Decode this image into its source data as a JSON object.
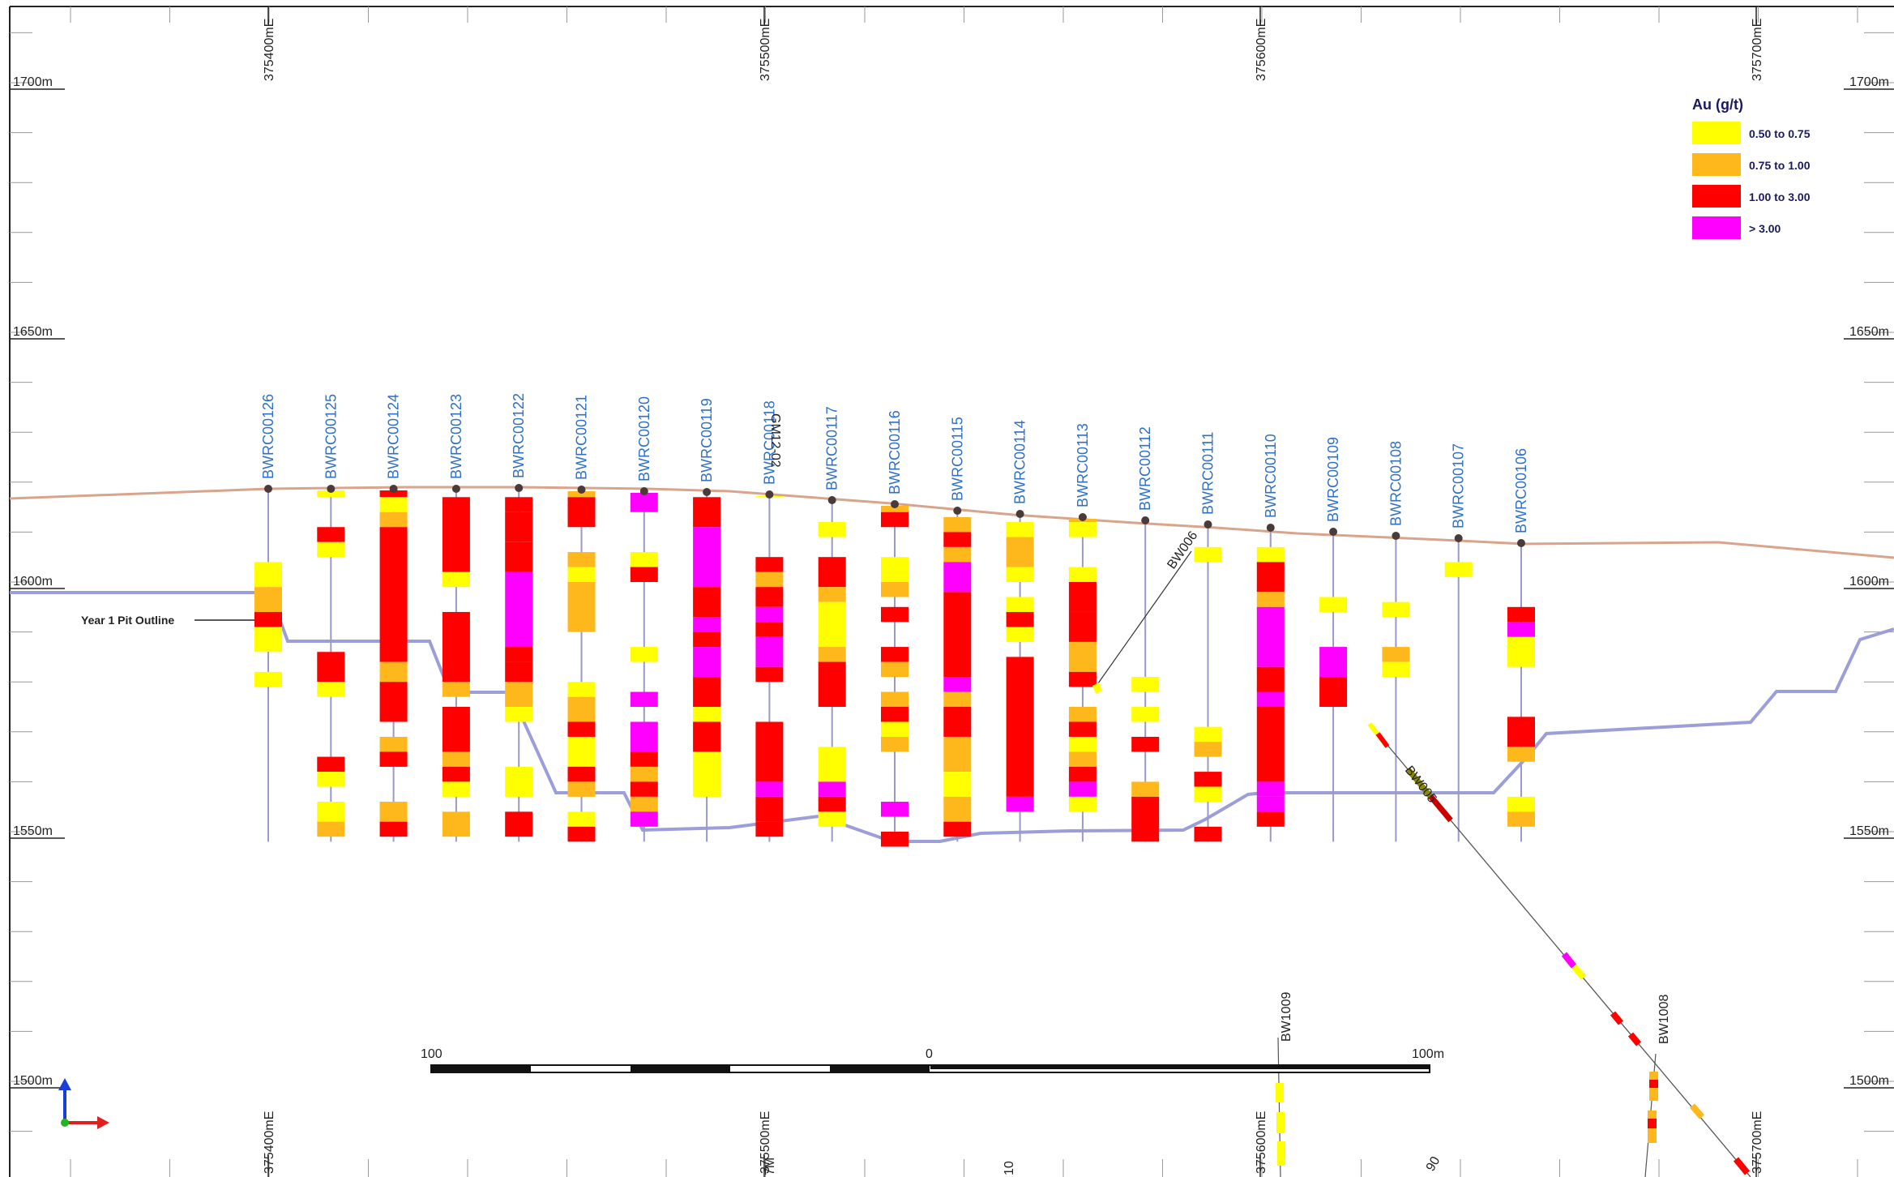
{
  "section": {
    "easting_labels": [
      "375400mE",
      "375500mE",
      "375600mE",
      "375700mE"
    ],
    "elevation_labels": [
      "1700m",
      "1650m",
      "1600m",
      "1550m",
      "1500m"
    ],
    "pit_outline_label": "Year 1 Pit Outline",
    "scale_bar": {
      "left_label": "100",
      "mid_label": "0",
      "right_label": "100m"
    }
  },
  "legend": {
    "title": "Au (g/t)",
    "items": [
      {
        "label": "0.50 to 0.75",
        "color": "#ffff00"
      },
      {
        "label": "0.75 to 1.00",
        "color": "#ffb81c"
      },
      {
        "label": "1.00 to 3.00",
        "color": "#ff0000"
      },
      {
        "label": "> 3.00",
        "color": "#ff00ff"
      }
    ]
  },
  "colors": {
    "topography": "#d9a48c",
    "pit_outline": "#9c9ed8",
    "trace": "#9a9ac8",
    "hole_label": "#2e6fc9"
  },
  "drillholes": [
    {
      "id": "BWRC00126",
      "intervals": [
        [
          1604,
          1599,
          "yellow"
        ],
        [
          1599,
          1594,
          "orange"
        ],
        [
          1594,
          1591,
          "red"
        ],
        [
          1591,
          1586,
          "yellow"
        ],
        [
          1582,
          1579,
          "yellow"
        ]
      ]
    },
    {
      "id": "BWRC00125",
      "intervals": [
        [
          1620,
          1617,
          "yellow"
        ],
        [
          1611,
          1608,
          "red"
        ],
        [
          1608,
          1605,
          "yellow"
        ],
        [
          1586,
          1580,
          "red"
        ],
        [
          1580,
          1577,
          "yellow"
        ],
        [
          1565,
          1562,
          "red"
        ],
        [
          1562,
          1559,
          "yellow"
        ],
        [
          1556,
          1552,
          "yellow"
        ],
        [
          1552,
          1549,
          "orange"
        ]
      ]
    },
    {
      "id": "BWRC00124",
      "intervals": [
        [
          1620,
          1617,
          "red"
        ],
        [
          1617,
          1614,
          "yellow"
        ],
        [
          1614,
          1611,
          "orange"
        ],
        [
          1611,
          1584,
          "red"
        ],
        [
          1584,
          1580,
          "orange"
        ],
        [
          1580,
          1572,
          "red"
        ],
        [
          1569,
          1566,
          "orange"
        ],
        [
          1566,
          1563,
          "red"
        ],
        [
          1556,
          1552,
          "orange"
        ],
        [
          1552,
          1549,
          "red"
        ]
      ]
    },
    {
      "id": "BWRC00123",
      "intervals": [
        [
          1617,
          1602,
          "red"
        ],
        [
          1602,
          1599,
          "yellow"
        ],
        [
          1594,
          1580,
          "red"
        ],
        [
          1580,
          1577,
          "orange"
        ],
        [
          1575,
          1566,
          "red"
        ],
        [
          1566,
          1563,
          "orange"
        ],
        [
          1563,
          1560,
          "red"
        ],
        [
          1560,
          1557,
          "yellow"
        ],
        [
          1554,
          1549,
          "orange"
        ]
      ]
    },
    {
      "id": "BWRC00122",
      "intervals": [
        [
          1617,
          1614,
          "red"
        ],
        [
          1614,
          1608,
          "red"
        ],
        [
          1608,
          1602,
          "red"
        ],
        [
          1602,
          1587,
          "magenta"
        ],
        [
          1587,
          1584,
          "red"
        ],
        [
          1584,
          1580,
          "red"
        ],
        [
          1580,
          1575,
          "orange"
        ],
        [
          1575,
          1572,
          "yellow"
        ],
        [
          1563,
          1557,
          "yellow"
        ],
        [
          1554,
          1549,
          "red"
        ]
      ]
    },
    {
      "id": "BWRC00121",
      "intervals": [
        [
          1620,
          1617,
          "orange"
        ],
        [
          1617,
          1611,
          "red"
        ],
        [
          1606,
          1603,
          "orange"
        ],
        [
          1603,
          1600,
          "yellow"
        ],
        [
          1600,
          1590,
          "orange"
        ],
        [
          1580,
          1577,
          "yellow"
        ],
        [
          1577,
          1572,
          "orange"
        ],
        [
          1572,
          1569,
          "red"
        ],
        [
          1569,
          1563,
          "yellow"
        ],
        [
          1563,
          1560,
          "red"
        ],
        [
          1560,
          1557,
          "orange"
        ],
        [
          1554,
          1551,
          "yellow"
        ],
        [
          1551,
          1548,
          "red"
        ]
      ]
    },
    {
      "id": "BWRC00120",
      "intervals": [
        [
          1620,
          1614,
          "magenta"
        ],
        [
          1606,
          1603,
          "yellow"
        ],
        [
          1603,
          1600,
          "red"
        ],
        [
          1587,
          1584,
          "yellow"
        ],
        [
          1578,
          1575,
          "magenta"
        ],
        [
          1572,
          1566,
          "magenta"
        ],
        [
          1566,
          1563,
          "red"
        ],
        [
          1563,
          1560,
          "orange"
        ],
        [
          1560,
          1557,
          "red"
        ],
        [
          1557,
          1554,
          "orange"
        ],
        [
          1554,
          1551,
          "magenta"
        ]
      ]
    },
    {
      "id": "BWRC00119",
      "intervals": [
        [
          1617,
          1611,
          "red"
        ],
        [
          1611,
          1599,
          "magenta"
        ],
        [
          1599,
          1593,
          "red"
        ],
        [
          1593,
          1590,
          "magenta"
        ],
        [
          1590,
          1587,
          "red"
        ],
        [
          1587,
          1581,
          "magenta"
        ],
        [
          1581,
          1575,
          "red"
        ],
        [
          1575,
          1572,
          "yellow"
        ],
        [
          1572,
          1566,
          "red"
        ],
        [
          1566,
          1557,
          "yellow"
        ]
      ]
    },
    {
      "id": "BWRC00118",
      "intervals": [
        [
          1620,
          1617,
          "yellow"
        ],
        [
          1605,
          1602,
          "red"
        ],
        [
          1602,
          1599,
          "orange"
        ],
        [
          1599,
          1595,
          "red"
        ],
        [
          1595,
          1592,
          "magenta"
        ],
        [
          1592,
          1589,
          "red"
        ],
        [
          1589,
          1583,
          "magenta"
        ],
        [
          1583,
          1580,
          "red"
        ],
        [
          1572,
          1560,
          "red"
        ],
        [
          1560,
          1557,
          "magenta"
        ],
        [
          1557,
          1552,
          "red"
        ],
        [
          1552,
          1549,
          "red"
        ]
      ]
    },
    {
      "id": "BWRC00117",
      "intervals": [
        [
          1612,
          1609,
          "yellow"
        ],
        [
          1605,
          1599,
          "red"
        ],
        [
          1599,
          1596,
          "orange"
        ],
        [
          1596,
          1587,
          "yellow"
        ],
        [
          1587,
          1584,
          "orange"
        ],
        [
          1584,
          1575,
          "red"
        ],
        [
          1567,
          1560,
          "yellow"
        ],
        [
          1560,
          1557,
          "magenta"
        ],
        [
          1557,
          1554,
          "red"
        ],
        [
          1554,
          1551,
          "yellow"
        ]
      ]
    },
    {
      "id": "BWRC00116",
      "intervals": [
        [
          1617,
          1614,
          "orange"
        ],
        [
          1614,
          1611,
          "red"
        ],
        [
          1605,
          1600,
          "yellow"
        ],
        [
          1600,
          1597,
          "orange"
        ],
        [
          1595,
          1592,
          "red"
        ],
        [
          1587,
          1584,
          "red"
        ],
        [
          1584,
          1581,
          "orange"
        ],
        [
          1578,
          1575,
          "orange"
        ],
        [
          1575,
          1572,
          "red"
        ],
        [
          1572,
          1569,
          "yellow"
        ],
        [
          1569,
          1566,
          "orange"
        ],
        [
          1556,
          1553,
          "magenta"
        ],
        [
          1550,
          1547,
          "red"
        ]
      ]
    },
    {
      "id": "BWRC00115",
      "intervals": [
        [
          1613,
          1610,
          "orange"
        ],
        [
          1610,
          1607,
          "red"
        ],
        [
          1607,
          1604,
          "orange"
        ],
        [
          1604,
          1598,
          "magenta"
        ],
        [
          1598,
          1581,
          "red"
        ],
        [
          1581,
          1578,
          "magenta"
        ],
        [
          1578,
          1575,
          "orange"
        ],
        [
          1575,
          1569,
          "red"
        ],
        [
          1569,
          1562,
          "orange"
        ],
        [
          1562,
          1557,
          "yellow"
        ],
        [
          1557,
          1552,
          "orange"
        ],
        [
          1552,
          1549,
          "red"
        ]
      ]
    },
    {
      "id": "BWRC00114",
      "intervals": [
        [
          1612,
          1609,
          "yellow"
        ],
        [
          1609,
          1603,
          "orange"
        ],
        [
          1603,
          1600,
          "yellow"
        ],
        [
          1597,
          1594,
          "yellow"
        ],
        [
          1594,
          1591,
          "red"
        ],
        [
          1591,
          1588,
          "yellow"
        ],
        [
          1585,
          1557,
          "red"
        ],
        [
          1557,
          1554,
          "magenta"
        ]
      ]
    },
    {
      "id": "BWRC00113",
      "intervals": [
        [
          1615,
          1612,
          "orange"
        ],
        [
          1612,
          1609,
          "yellow"
        ],
        [
          1603,
          1600,
          "yellow"
        ],
        [
          1600,
          1594,
          "red"
        ],
        [
          1594,
          1588,
          "red"
        ],
        [
          1588,
          1582,
          "orange"
        ],
        [
          1582,
          1579,
          "red"
        ],
        [
          1575,
          1572,
          "orange"
        ],
        [
          1572,
          1569,
          "red"
        ],
        [
          1569,
          1566,
          "yellow"
        ],
        [
          1566,
          1563,
          "orange"
        ],
        [
          1563,
          1560,
          "red"
        ],
        [
          1560,
          1557,
          "magenta"
        ],
        [
          1557,
          1554,
          "yellow"
        ]
      ]
    },
    {
      "id": "BWRC00112",
      "intervals": [
        [
          1581,
          1578,
          "yellow"
        ],
        [
          1575,
          1572,
          "yellow"
        ],
        [
          1569,
          1566,
          "red"
        ],
        [
          1560,
          1557,
          "orange"
        ],
        [
          1557,
          1548,
          "red"
        ]
      ]
    },
    {
      "id": "BWRC00111",
      "intervals": [
        [
          1607,
          1604,
          "yellow"
        ],
        [
          1571,
          1568,
          "yellow"
        ],
        [
          1568,
          1565,
          "orange"
        ],
        [
          1562,
          1559,
          "red"
        ],
        [
          1559,
          1556,
          "yellow"
        ],
        [
          1551,
          1548,
          "red"
        ]
      ]
    },
    {
      "id": "BWRC00110",
      "intervals": [
        [
          1607,
          1604,
          "yellow"
        ],
        [
          1604,
          1598,
          "red"
        ],
        [
          1598,
          1595,
          "orange"
        ],
        [
          1595,
          1583,
          "magenta"
        ],
        [
          1583,
          1578,
          "red"
        ],
        [
          1578,
          1575,
          "magenta"
        ],
        [
          1575,
          1560,
          "red"
        ],
        [
          1560,
          1557,
          "magenta"
        ],
        [
          1557,
          1554,
          "magenta"
        ],
        [
          1554,
          1551,
          "red"
        ]
      ]
    },
    {
      "id": "BWRC00109",
      "intervals": [
        [
          1597,
          1594,
          "yellow"
        ],
        [
          1587,
          1581,
          "magenta"
        ],
        [
          1581,
          1575,
          "red"
        ]
      ]
    },
    {
      "id": "BWRC00108",
      "intervals": [
        [
          1596,
          1593,
          "yellow"
        ],
        [
          1587,
          1584,
          "orange"
        ],
        [
          1584,
          1581,
          "yellow"
        ]
      ]
    },
    {
      "id": "BWRC00107",
      "intervals": [
        [
          1604,
          1601,
          "yellow"
        ]
      ]
    },
    {
      "id": "BWRC00106",
      "intervals": [
        [
          1595,
          1592,
          "red"
        ],
        [
          1592,
          1589,
          "magenta"
        ],
        [
          1589,
          1583,
          "yellow"
        ],
        [
          1573,
          1567,
          "red"
        ],
        [
          1567,
          1564,
          "orange"
        ],
        [
          1557,
          1554,
          "yellow"
        ],
        [
          1554,
          1551,
          "orange"
        ]
      ]
    }
  ],
  "angled_holes": [
    {
      "id": "GM12-02"
    },
    {
      "id": "BW006"
    },
    {
      "id": "BW005"
    },
    {
      "id": "BW1008"
    },
    {
      "id": "BW1009"
    }
  ],
  "partial_bottom_labels": [
    "10",
    "90",
    "7M"
  ]
}
